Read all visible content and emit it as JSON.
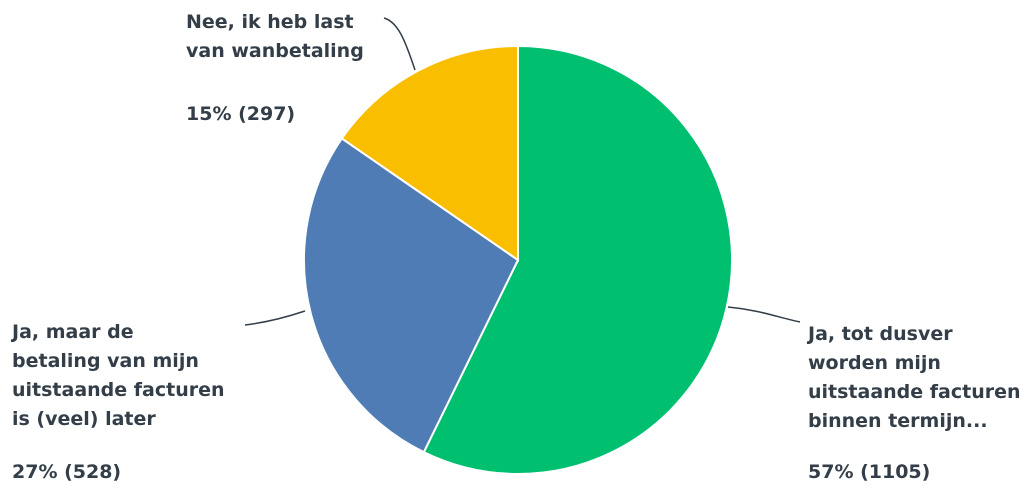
{
  "chart_data": {
    "type": "pie",
    "title": "",
    "slices": [
      {
        "label": "Ja, tot dusver\nworden mijn\nuitstaande facturen\nbinnen termijn...",
        "percent": 57,
        "count": 1105,
        "value_text": "57% (1105)",
        "color": "#00bf6f"
      },
      {
        "label": "Ja, maar de\nbetaling van mijn\nuitstaande facturen\nis (veel) later",
        "percent": 27,
        "count": 528,
        "value_text": "27% (528)",
        "color": "#507cb6"
      },
      {
        "label": "Nee, ik heb last\nvan wanbetaling",
        "percent": 15,
        "count": 297,
        "value_text": "15% (297)",
        "color": "#f9be00"
      }
    ]
  }
}
